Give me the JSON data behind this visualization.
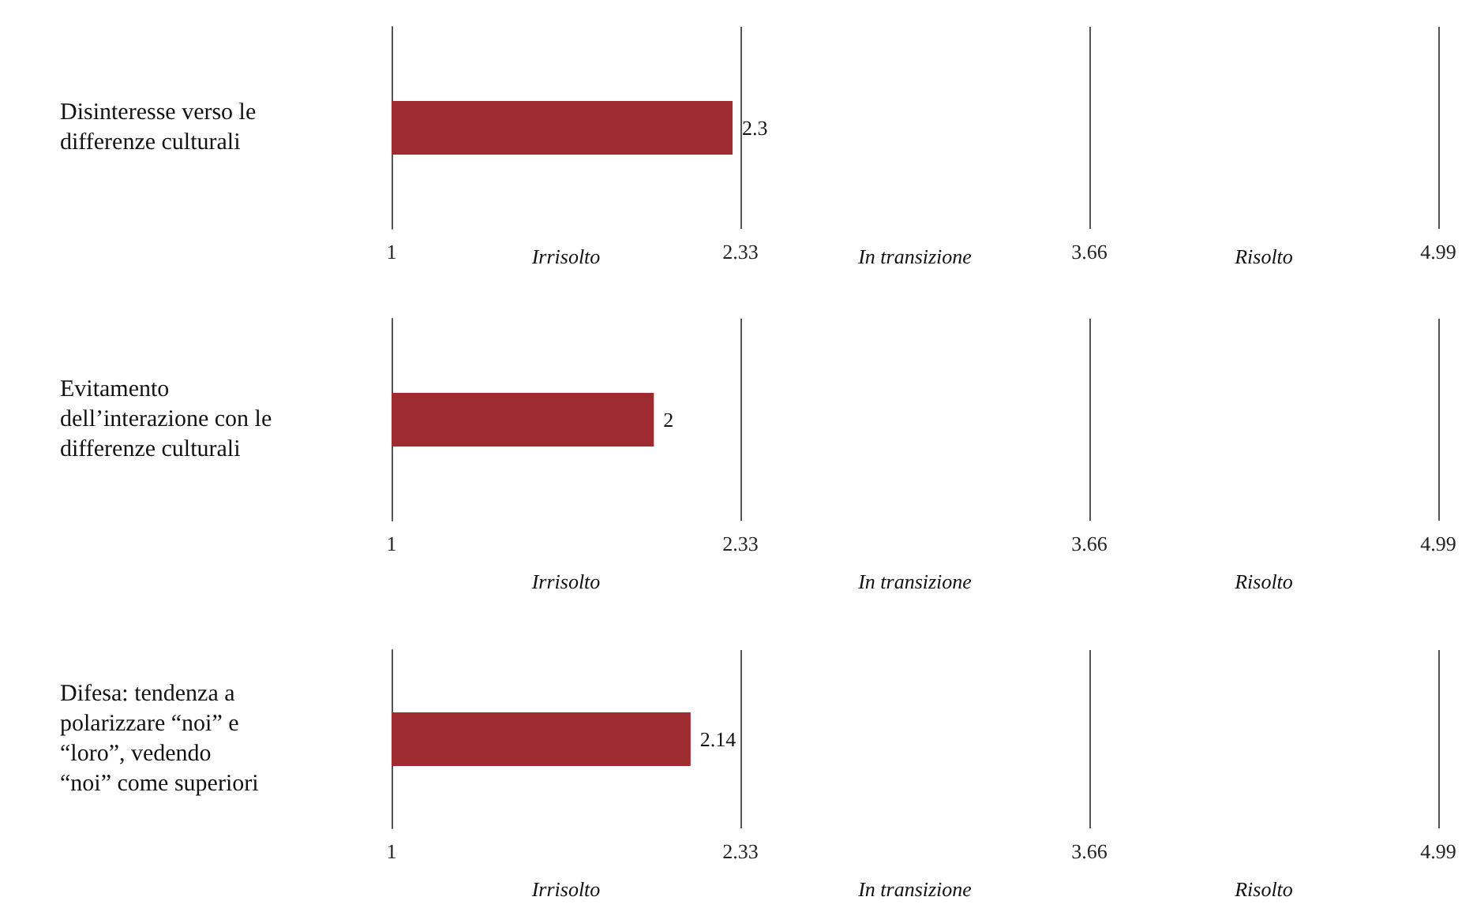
{
  "chart_data": [
    {
      "type": "bar",
      "orientation": "horizontal",
      "categories": [
        "Disinteresse verso le differenze culturali"
      ],
      "values": [
        2.3
      ],
      "color": "#9e2b2f",
      "xlim": [
        1,
        4.99
      ],
      "xticks": [
        1,
        2.33,
        3.66,
        4.99
      ],
      "grid": "x",
      "data_labels": true,
      "annotations": [
        "Irrisolto",
        "In transizione",
        "Risolto"
      ]
    },
    {
      "type": "bar",
      "orientation": "horizontal",
      "categories": [
        "Evitamento dell’interazione con le differenze culturali"
      ],
      "values": [
        2
      ],
      "color": "#9e2b2f",
      "xlim": [
        1,
        4.99
      ],
      "xticks": [
        1,
        2.33,
        3.66,
        4.99
      ],
      "grid": "x",
      "data_labels": true,
      "annotations": [
        "Irrisolto",
        "In transizione",
        "Risolto"
      ]
    },
    {
      "type": "bar",
      "orientation": "horizontal",
      "categories": [
        "Difesa: tendenza a polarizzare “noi” e “loro”, vedendo “noi” come superiori"
      ],
      "values": [
        2.14
      ],
      "color": "#9e2b2f",
      "xlim": [
        1,
        4.99
      ],
      "xticks": [
        1,
        2.33,
        3.66,
        4.99
      ],
      "grid": "x",
      "data_labels": true,
      "annotations": [
        "Irrisolto",
        "In transizione",
        "Risolto"
      ]
    }
  ]
}
